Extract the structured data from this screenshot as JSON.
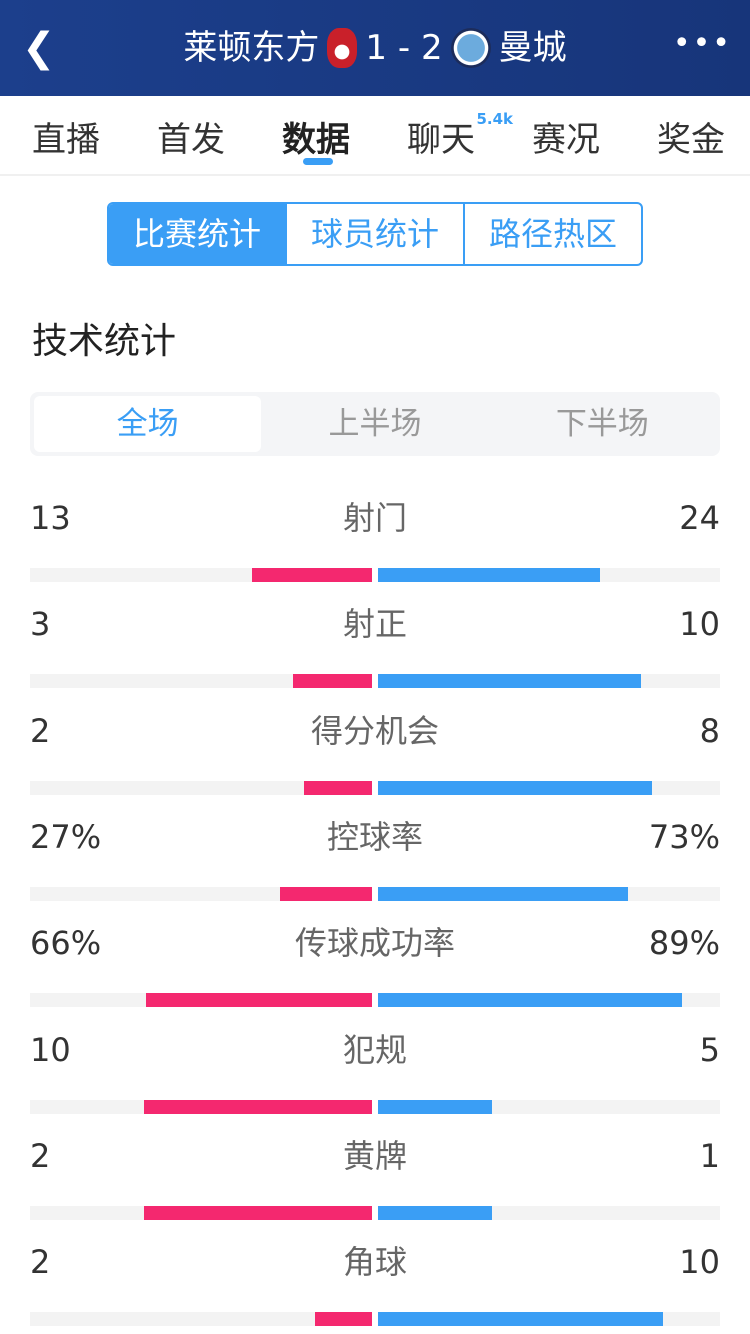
{
  "header": {
    "home": "莱顿东方",
    "score": "1 - 2",
    "away": "曼城",
    "back_icon": "chevron-left-icon",
    "more_icon": "more-icon"
  },
  "tabs": [
    {
      "label": "直播"
    },
    {
      "label": "首发"
    },
    {
      "label": "数据"
    },
    {
      "label": "聊天",
      "badge": "5.4k"
    },
    {
      "label": "赛况"
    },
    {
      "label": "奖金"
    }
  ],
  "segments": [
    "比赛统计",
    "球员统计",
    "路径热区"
  ],
  "section_title": "技术统计",
  "periods": [
    "全场",
    "上半场",
    "下半场"
  ],
  "colors": {
    "home": "#f4286f",
    "away": "#3a9ef5"
  },
  "stats": [
    {
      "name": "射门",
      "home": "13",
      "away": "24",
      "home_fill": 0.35,
      "away_fill": 0.65
    },
    {
      "name": "射正",
      "home": "3",
      "away": "10",
      "home_fill": 0.23,
      "away_fill": 0.77
    },
    {
      "name": "得分机会",
      "home": "2",
      "away": "8",
      "home_fill": 0.2,
      "away_fill": 0.8
    },
    {
      "name": "控球率",
      "home": "27%",
      "away": "73%",
      "home_fill": 0.27,
      "away_fill": 0.73
    },
    {
      "name": "传球成功率",
      "home": "66%",
      "away": "89%",
      "home_fill": 0.66,
      "away_fill": 0.89
    },
    {
      "name": "犯规",
      "home": "10",
      "away": "5",
      "home_fill": 0.667,
      "away_fill": 0.333
    },
    {
      "name": "黄牌",
      "home": "2",
      "away": "1",
      "home_fill": 0.667,
      "away_fill": 0.333
    },
    {
      "name": "角球",
      "home": "2",
      "away": "10",
      "home_fill": 0.167,
      "away_fill": 0.833
    }
  ]
}
